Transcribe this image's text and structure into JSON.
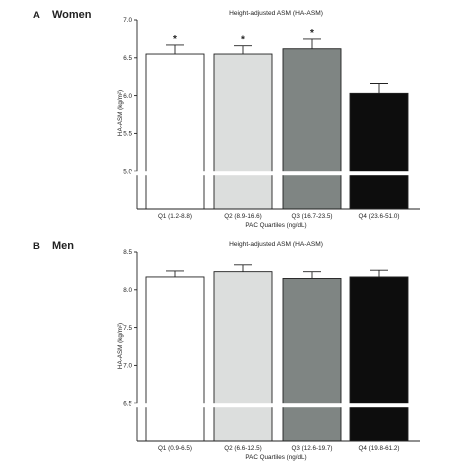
{
  "chart_data": [
    {
      "type": "bar",
      "panel_letter": "A",
      "panel_name": "Women",
      "title": "Height-adjusted ASM (HA-ASM)",
      "xlabel": "PAC Quartiles (ng/dL)",
      "ylabel": "HA-ASM (kg/m²)",
      "categories": [
        "Q1 (1.2-8.8)",
        "Q2 (8.9-16.6)",
        "Q3 (16.7-23.5)",
        "Q4 (23.6-51.0)"
      ],
      "values": [
        6.55,
        6.55,
        6.62,
        6.03
      ],
      "errors": [
        0.12,
        0.11,
        0.13,
        0.13
      ],
      "significance": [
        "*",
        "*",
        "*",
        ""
      ],
      "bar_colors": [
        "#ffffff",
        "#dcdedd",
        "#7f8583",
        "#0d0d0d"
      ],
      "ylim": [
        4.5,
        7.0
      ],
      "axis_break": [
        5.0,
        5.0
      ],
      "yticks": [
        5.0,
        5.5,
        6.0,
        6.5,
        7.0
      ],
      "ytick_labels": [
        "5.0",
        "5.5",
        "6.0",
        "6.5",
        "7.0"
      ],
      "grid": false,
      "legend": "none"
    },
    {
      "type": "bar",
      "panel_letter": "B",
      "panel_name": "Men",
      "title": "Height-adjusted ASM (HA-ASM)",
      "xlabel": "PAC Quartiles (ng/dL)",
      "ylabel": "HA-ASM (kg/m²)",
      "categories": [
        "Q1 (0.9-6.5)",
        "Q2 (6.6-12.5)",
        "Q3 (12.6-19.7)",
        "Q4 (19.8-61.2)"
      ],
      "values": [
        8.17,
        8.24,
        8.15,
        8.17
      ],
      "errors": [
        0.08,
        0.09,
        0.09,
        0.09
      ],
      "significance": [
        "",
        "",
        "",
        ""
      ],
      "bar_colors": [
        "#ffffff",
        "#dcdedd",
        "#7f8583",
        "#0d0d0d"
      ],
      "ylim": [
        6.0,
        8.5
      ],
      "axis_break": [
        6.5,
        6.5
      ],
      "yticks": [
        6.5,
        7.0,
        7.5,
        8.0,
        8.5
      ],
      "ytick_labels": [
        "6.5",
        "7.0",
        "7.5",
        "8.0",
        "8.5"
      ],
      "grid": false,
      "legend": "none"
    }
  ]
}
